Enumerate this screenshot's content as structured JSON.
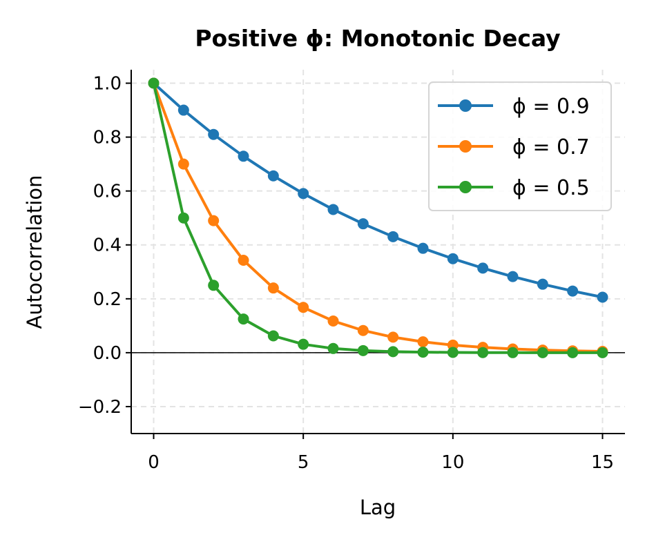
{
  "chart_data": {
    "type": "line",
    "title": "Positive ϕ: Monotonic Decay",
    "xlabel": "Lag",
    "ylabel": "Autocorrelation",
    "xlim": [
      -0.75,
      15.75
    ],
    "ylim": [
      -0.3,
      1.05
    ],
    "xticks": [
      0,
      5,
      10,
      15
    ],
    "xtick_labels": [
      "0",
      "5",
      "10",
      "15"
    ],
    "yticks": [
      -0.2,
      0.0,
      0.2,
      0.4,
      0.6,
      0.8,
      1.0
    ],
    "ytick_labels": [
      "−0.2",
      "0.0",
      "0.2",
      "0.4",
      "0.6",
      "0.8",
      "1.0"
    ],
    "grid": true,
    "reference_line_y": 0,
    "legend_placement": "top-right",
    "x": [
      0,
      1,
      2,
      3,
      4,
      5,
      6,
      7,
      8,
      9,
      10,
      11,
      12,
      13,
      14,
      15
    ],
    "series": [
      {
        "name": "ϕ = 0.9",
        "color": "#1f77b4",
        "values": [
          1,
          0.9,
          0.81,
          0.729,
          0.6561,
          0.5905,
          0.5314,
          0.4783,
          0.4305,
          0.3874,
          0.3487,
          0.3138,
          0.2824,
          0.2542,
          0.2288,
          0.2059
        ]
      },
      {
        "name": "ϕ = 0.7",
        "color": "#ff7f0e",
        "values": [
          1,
          0.7,
          0.49,
          0.343,
          0.2401,
          0.1681,
          0.1176,
          0.0824,
          0.0576,
          0.0404,
          0.0282,
          0.0198,
          0.0138,
          0.0097,
          0.0068,
          0.0047
        ]
      },
      {
        "name": "ϕ = 0.5",
        "color": "#2ca02c",
        "values": [
          1,
          0.5,
          0.25,
          0.125,
          0.0625,
          0.0313,
          0.0156,
          0.0078,
          0.0039,
          0.002,
          0.001,
          0.0005,
          0.0002,
          0.0001,
          0.0001,
          0.0
        ]
      }
    ]
  }
}
